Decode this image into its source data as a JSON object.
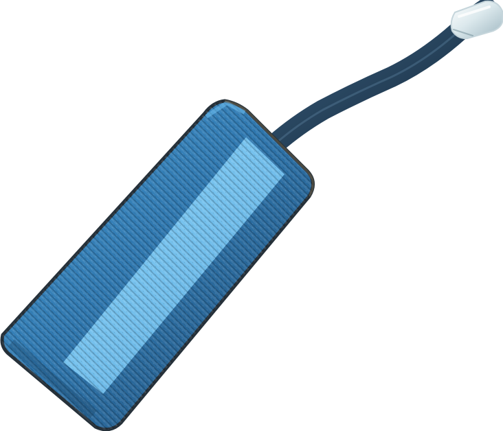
{
  "image": {
    "subject": "usb-c-hub",
    "background_color": "#ffffff",
    "colors": {
      "body_dark": "#1f4f78",
      "body_mid": "#2f73a8",
      "body_light": "#58a6df",
      "stripe": "#78c8f3",
      "edge": "#26313a",
      "cable": "#22394f",
      "cable_highlight": "#7aa9c8",
      "plug_metal": "#d9e6ea",
      "plug_highlight": "#f4fbff"
    }
  }
}
